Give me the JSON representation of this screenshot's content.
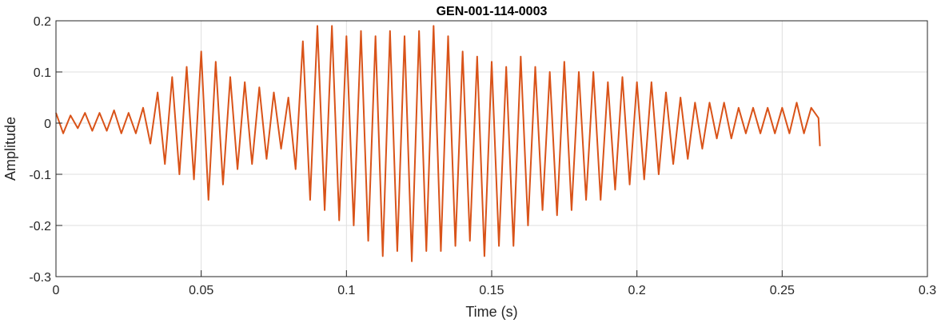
{
  "chart_data": {
    "type": "line",
    "title": "GEN-001-114-0003",
    "xlabel": "Time (s)",
    "ylabel": "Amplitude",
    "xlim": [
      0,
      0.3
    ],
    "ylim": [
      -0.3,
      0.2
    ],
    "xticks": [
      0,
      0.05,
      0.1,
      0.15,
      0.2,
      0.25,
      0.3
    ],
    "xtick_labels": [
      "0",
      "0.05",
      "0.1",
      "0.15",
      "0.2",
      "0.25",
      "0.3"
    ],
    "yticks": [
      -0.3,
      -0.2,
      -0.1,
      0,
      0.1,
      0.2
    ],
    "ytick_labels": [
      "-0.3",
      "-0.2",
      "-0.1",
      "0",
      "0.1",
      "0.2"
    ],
    "grid": true,
    "line_color": "#D95319",
    "series": [
      {
        "x": [
          0,
          0.0025,
          0.005,
          0.0075,
          0.01,
          0.0125,
          0.015,
          0.0175,
          0.02,
          0.0225,
          0.025,
          0.0275,
          0.03,
          0.0325,
          0.035,
          0.0375,
          0.04,
          0.0425,
          0.045,
          0.0475,
          0.05,
          0.0525,
          0.055,
          0.0575,
          0.06,
          0.0625,
          0.065,
          0.0675,
          0.07,
          0.0725,
          0.075,
          0.0775,
          0.08,
          0.0825,
          0.085,
          0.0875,
          0.09,
          0.0925,
          0.095,
          0.0975,
          0.1,
          0.1025,
          0.105,
          0.1075,
          0.11,
          0.1125,
          0.115,
          0.1175,
          0.12,
          0.1225,
          0.125,
          0.1275,
          0.13,
          0.1325,
          0.135,
          0.1375,
          0.14,
          0.1425,
          0.145,
          0.1475,
          0.15,
          0.1525,
          0.155,
          0.1575,
          0.16,
          0.1625,
          0.165,
          0.1675,
          0.17,
          0.1725,
          0.175,
          0.1775,
          0.18,
          0.1825,
          0.185,
          0.1875,
          0.19,
          0.1925,
          0.195,
          0.1975,
          0.2,
          0.2025,
          0.205,
          0.2075,
          0.21,
          0.2125,
          0.215,
          0.2175,
          0.22,
          0.2225,
          0.225,
          0.2275,
          0.23,
          0.2325,
          0.235,
          0.2375,
          0.24,
          0.2425,
          0.245,
          0.2475,
          0.25,
          0.2525,
          0.255,
          0.2575,
          0.26,
          0.2625,
          0.263
        ],
        "values": [
          0.02,
          -0.02,
          0.015,
          -0.01,
          0.02,
          -0.015,
          0.02,
          -0.015,
          0.025,
          -0.02,
          0.02,
          -0.02,
          0.03,
          -0.04,
          0.06,
          -0.08,
          0.09,
          -0.1,
          0.11,
          -0.11,
          0.14,
          -0.15,
          0.12,
          -0.12,
          0.09,
          -0.09,
          0.08,
          -0.08,
          0.07,
          -0.07,
          0.06,
          -0.05,
          0.05,
          -0.09,
          0.16,
          -0.15,
          0.19,
          -0.17,
          0.19,
          -0.19,
          0.17,
          -0.2,
          0.18,
          -0.23,
          0.17,
          -0.26,
          0.18,
          -0.25,
          0.17,
          -0.27,
          0.18,
          -0.25,
          0.19,
          -0.25,
          0.17,
          -0.24,
          0.14,
          -0.23,
          0.13,
          -0.26,
          0.12,
          -0.24,
          0.11,
          -0.24,
          0.13,
          -0.2,
          0.11,
          -0.17,
          0.1,
          -0.18,
          0.12,
          -0.17,
          0.1,
          -0.15,
          0.1,
          -0.15,
          0.08,
          -0.13,
          0.09,
          -0.12,
          0.08,
          -0.11,
          0.08,
          -0.1,
          0.06,
          -0.08,
          0.05,
          -0.07,
          0.04,
          -0.05,
          0.04,
          -0.03,
          0.04,
          -0.03,
          0.03,
          -0.02,
          0.03,
          -0.02,
          0.03,
          -0.02,
          0.03,
          -0.02,
          0.04,
          -0.02,
          0.03,
          0.01,
          -0.045
        ]
      }
    ]
  }
}
